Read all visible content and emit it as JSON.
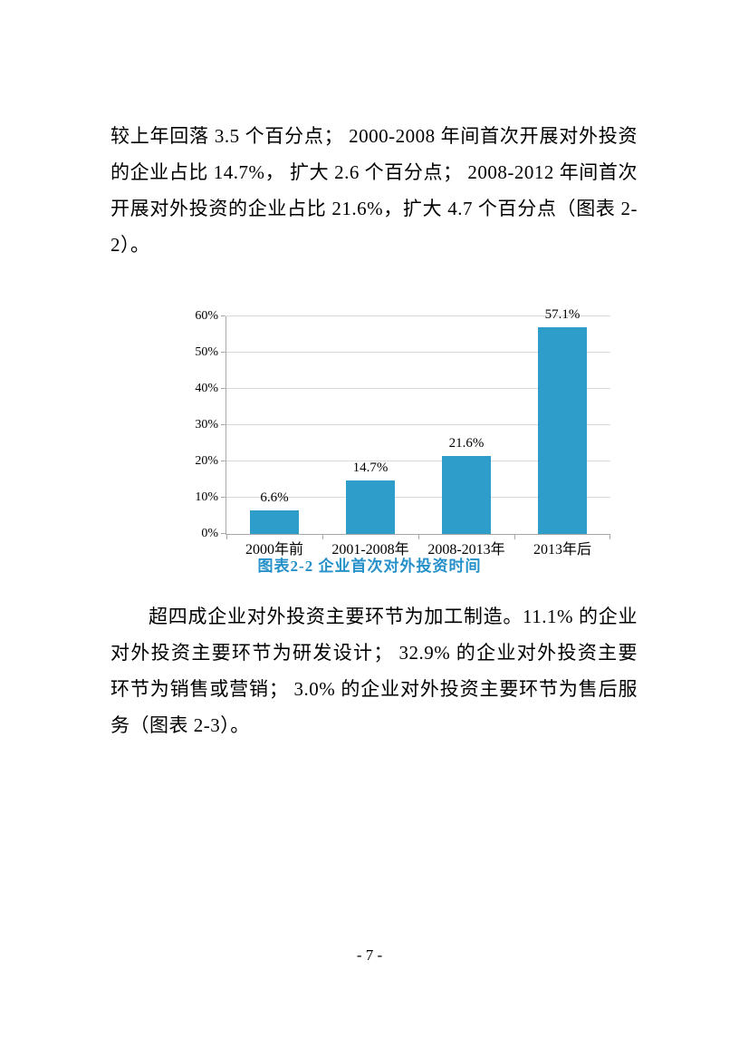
{
  "document": {
    "paragraph_1": "较上年回落 3.5 个百分点； 2000-2008 年间首次开展对外投资的企业占比 14.7%， 扩大 2.6 个百分点； 2008-2012 年间首次开展对外投资的企业占比 21.6%，扩大 4.7 个百分点（图表 2-2）。",
    "paragraph_2": "超四成企业对外投资主要环节为加工制造。11.1% 的企业对外投资主要环节为研发设计； 32.9% 的企业对外投资主要环节为销售或营销； 3.0% 的企业对外投资主要环节为售后服务（图表 2-3）。",
    "page_number": "- 7 -"
  },
  "chart_data": {
    "type": "bar",
    "title": "图表2-2 企业首次对外投资时间",
    "categories": [
      "2000年前",
      "2001-2008年",
      "2008-2013年",
      "2013年后"
    ],
    "values": [
      6.6,
      14.7,
      21.6,
      57.1
    ],
    "value_labels": [
      "6.6%",
      "14.7%",
      "21.6%",
      "57.1%"
    ],
    "y_tick_labels": [
      "0%",
      "10%",
      "20%",
      "30%",
      "40%",
      "50%",
      "60%"
    ],
    "y_tick_values": [
      0,
      10,
      20,
      30,
      40,
      50,
      60
    ],
    "ylim": [
      0,
      60
    ],
    "grid": true,
    "legend": false,
    "xlabel": "",
    "ylabel": ""
  },
  "colors": {
    "bar": "#2E9DC9",
    "caption": "#2691C9",
    "gridline": "#D9D9D9",
    "axis": "#A8A8A8",
    "text": "#000000",
    "background": "#FFFFFF"
  }
}
